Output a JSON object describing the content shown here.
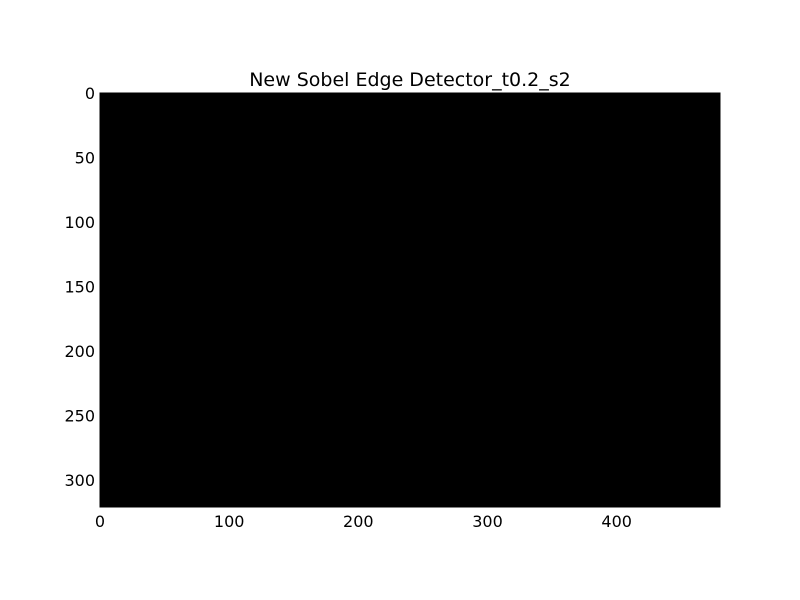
{
  "chart_data": {
    "type": "heatmap",
    "title": "New Sobel Edge Detector_t0.2_s2",
    "xlabel": "",
    "ylabel": "",
    "image_width": 480,
    "image_height": 321,
    "xlim": [
      0,
      480
    ],
    "ylim": [
      0,
      321
    ],
    "y_axis_inverted": true,
    "x_ticks": [
      0,
      100,
      200,
      300,
      400
    ],
    "x_tick_labels": [
      "0",
      "100",
      "200",
      "300",
      "400"
    ],
    "y_ticks": [
      0,
      50,
      100,
      150,
      200,
      250,
      300
    ],
    "y_tick_labels": [
      "0",
      "50",
      "100",
      "150",
      "200",
      "250",
      "300"
    ],
    "pixel_value": 0,
    "colormap": "gray",
    "grid": false
  },
  "colors": {
    "image_fill": "#000000",
    "background": "#ffffff",
    "axis": "#000000",
    "text": "#000000"
  }
}
